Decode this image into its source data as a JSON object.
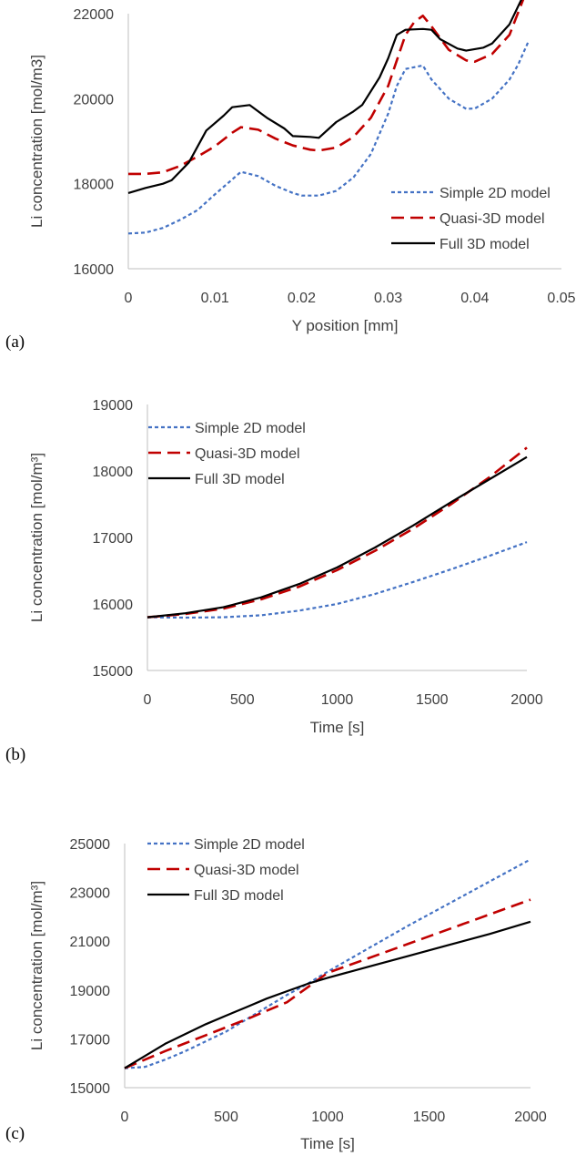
{
  "colors": {
    "simple_2d": "#4472C4",
    "quasi_3d": "#C00000",
    "full_3d": "#000000",
    "axis": "#BFBFBF",
    "text": "#404040"
  },
  "chart_data": [
    {
      "panel_label": "(a)",
      "type": "line",
      "xlabel": "Y position [mm]",
      "ylabel": "Li concentration [mol/m3]",
      "xlim": [
        0,
        0.05
      ],
      "ylim": [
        16000,
        22000
      ],
      "xticks": [
        "0",
        "0.01",
        "0.02",
        "0.03",
        "0.04",
        "0.05"
      ],
      "yticks": [
        "16000",
        "18000",
        "20000",
        "22000"
      ],
      "grid": false,
      "legend": "bottom-right",
      "series": [
        {
          "name": "Simple 2D model",
          "key": "simple_2d",
          "style": "dotted",
          "points": [
            [
              0,
              16830
            ],
            [
              0.002,
              16850
            ],
            [
              0.004,
              16960
            ],
            [
              0.006,
              17150
            ],
            [
              0.008,
              17380
            ],
            [
              0.01,
              17750
            ],
            [
              0.012,
              18100
            ],
            [
              0.013,
              18280
            ],
            [
              0.015,
              18180
            ],
            [
              0.017,
              17950
            ],
            [
              0.019,
              17780
            ],
            [
              0.02,
              17720
            ],
            [
              0.022,
              17720
            ],
            [
              0.024,
              17830
            ],
            [
              0.026,
              18150
            ],
            [
              0.028,
              18700
            ],
            [
              0.03,
              19650
            ],
            [
              0.031,
              20300
            ],
            [
              0.032,
              20700
            ],
            [
              0.034,
              20780
            ],
            [
              0.035,
              20450
            ],
            [
              0.037,
              20000
            ],
            [
              0.039,
              19760
            ],
            [
              0.04,
              19770
            ],
            [
              0.042,
              20000
            ],
            [
              0.044,
              20450
            ],
            [
              0.045,
              20800
            ],
            [
              0.0462,
              21350
            ]
          ]
        },
        {
          "name": "Quasi-3D model",
          "key": "quasi_3d",
          "style": "dashed",
          "points": [
            [
              0,
              18230
            ],
            [
              0.002,
              18230
            ],
            [
              0.004,
              18270
            ],
            [
              0.006,
              18420
            ],
            [
              0.008,
              18640
            ],
            [
              0.01,
              18880
            ],
            [
              0.012,
              19200
            ],
            [
              0.013,
              19330
            ],
            [
              0.015,
              19270
            ],
            [
              0.017,
              19060
            ],
            [
              0.019,
              18900
            ],
            [
              0.021,
              18800
            ],
            [
              0.022,
              18780
            ],
            [
              0.024,
              18850
            ],
            [
              0.026,
              19100
            ],
            [
              0.028,
              19550
            ],
            [
              0.03,
              20300
            ],
            [
              0.031,
              20900
            ],
            [
              0.032,
              21500
            ],
            [
              0.033,
              21800
            ],
            [
              0.034,
              21950
            ],
            [
              0.035,
              21700
            ],
            [
              0.037,
              21150
            ],
            [
              0.039,
              20900
            ],
            [
              0.04,
              20870
            ],
            [
              0.042,
              21050
            ],
            [
              0.044,
              21500
            ],
            [
              0.046,
              22550
            ]
          ]
        },
        {
          "name": "Full 3D model",
          "key": "full_3d",
          "style": "solid",
          "points": [
            [
              0,
              17780
            ],
            [
              0.002,
              17900
            ],
            [
              0.004,
              18000
            ],
            [
              0.005,
              18080
            ],
            [
              0.007,
              18500
            ],
            [
              0.009,
              19250
            ],
            [
              0.011,
              19600
            ],
            [
              0.012,
              19800
            ],
            [
              0.014,
              19850
            ],
            [
              0.016,
              19550
            ],
            [
              0.018,
              19300
            ],
            [
              0.019,
              19120
            ],
            [
              0.021,
              19100
            ],
            [
              0.022,
              19080
            ],
            [
              0.024,
              19450
            ],
            [
              0.026,
              19700
            ],
            [
              0.027,
              19850
            ],
            [
              0.029,
              20500
            ],
            [
              0.03,
              20950
            ],
            [
              0.031,
              21500
            ],
            [
              0.032,
              21620
            ],
            [
              0.034,
              21640
            ],
            [
              0.035,
              21620
            ],
            [
              0.036,
              21400
            ],
            [
              0.038,
              21180
            ],
            [
              0.039,
              21130
            ],
            [
              0.041,
              21200
            ],
            [
              0.042,
              21300
            ],
            [
              0.044,
              21750
            ],
            [
              0.0462,
              22680
            ]
          ]
        }
      ]
    },
    {
      "panel_label": "(b)",
      "type": "line",
      "xlabel": "Time [s]",
      "ylabel": "Li concentration [mol/m³]",
      "xlim": [
        0,
        2000
      ],
      "ylim": [
        15000,
        19000
      ],
      "xticks": [
        "0",
        "500",
        "1000",
        "1500",
        "2000"
      ],
      "yticks": [
        "15000",
        "16000",
        "17000",
        "18000",
        "19000"
      ],
      "grid": false,
      "legend": "top-left",
      "series": [
        {
          "name": "Simple 2D model",
          "key": "simple_2d",
          "style": "dotted",
          "points": [
            [
              0,
              15800
            ],
            [
              200,
              15795
            ],
            [
              400,
              15800
            ],
            [
              600,
              15830
            ],
            [
              800,
              15900
            ],
            [
              1000,
              16000
            ],
            [
              1200,
              16150
            ],
            [
              1400,
              16330
            ],
            [
              1600,
              16520
            ],
            [
              1800,
              16720
            ],
            [
              2000,
              16930
            ]
          ]
        },
        {
          "name": "Quasi-3D model",
          "key": "quasi_3d",
          "style": "dashed",
          "points": [
            [
              0,
              15800
            ],
            [
              200,
              15850
            ],
            [
              400,
              15930
            ],
            [
              600,
              16070
            ],
            [
              800,
              16260
            ],
            [
              1000,
              16510
            ],
            [
              1200,
              16800
            ],
            [
              1400,
              17130
            ],
            [
              1600,
              17500
            ],
            [
              1800,
              17900
            ],
            [
              2000,
              18350
            ]
          ]
        },
        {
          "name": "Full 3D model",
          "key": "full_3d",
          "style": "solid",
          "points": [
            [
              0,
              15800
            ],
            [
              200,
              15860
            ],
            [
              400,
              15950
            ],
            [
              600,
              16100
            ],
            [
              800,
              16300
            ],
            [
              1000,
              16550
            ],
            [
              1200,
              16850
            ],
            [
              1400,
              17180
            ],
            [
              1600,
              17530
            ],
            [
              1800,
              17870
            ],
            [
              2000,
              18210
            ]
          ]
        }
      ]
    },
    {
      "panel_label": "(c)",
      "type": "line",
      "xlabel": "Time [s]",
      "ylabel": "Li concentration [mol/m³]",
      "xlim": [
        0,
        2000
      ],
      "ylim": [
        15000,
        25000
      ],
      "xticks": [
        "0",
        "500",
        "1000",
        "1500",
        "2000"
      ],
      "yticks": [
        "15000",
        "17000",
        "19000",
        "21000",
        "23000",
        "25000"
      ],
      "grid": false,
      "legend": "top-left",
      "series": [
        {
          "name": "Simple 2D model",
          "key": "simple_2d",
          "style": "dotted",
          "points": [
            [
              0,
              15800
            ],
            [
              100,
              15850
            ],
            [
              200,
              16150
            ],
            [
              300,
              16500
            ],
            [
              400,
              16900
            ],
            [
              500,
              17300
            ],
            [
              600,
              17800
            ],
            [
              700,
              18300
            ],
            [
              800,
              18800
            ],
            [
              900,
              19250
            ],
            [
              1000,
              19750
            ],
            [
              1200,
              20700
            ],
            [
              1400,
              21650
            ],
            [
              1600,
              22550
            ],
            [
              1800,
              23450
            ],
            [
              2000,
              24350
            ]
          ]
        },
        {
          "name": "Quasi-3D model",
          "key": "quasi_3d",
          "style": "dashed",
          "points": [
            [
              0,
              15800
            ],
            [
              200,
              16500
            ],
            [
              400,
              17150
            ],
            [
              600,
              17800
            ],
            [
              800,
              18500
            ],
            [
              1000,
              19700
            ],
            [
              1200,
              20300
            ],
            [
              1400,
              20900
            ],
            [
              1600,
              21500
            ],
            [
              1800,
              22100
            ],
            [
              2000,
              22700
            ]
          ]
        },
        {
          "name": "Full 3D model",
          "key": "full_3d",
          "style": "solid",
          "points": [
            [
              0,
              15800
            ],
            [
              100,
              16300
            ],
            [
              200,
              16800
            ],
            [
              300,
              17200
            ],
            [
              400,
              17600
            ],
            [
              500,
              17950
            ],
            [
              600,
              18300
            ],
            [
              700,
              18650
            ],
            [
              800,
              18950
            ],
            [
              900,
              19250
            ],
            [
              1000,
              19500
            ],
            [
              1200,
              19950
            ],
            [
              1400,
              20400
            ],
            [
              1600,
              20850
            ],
            [
              1800,
              21300
            ],
            [
              2000,
              21800
            ]
          ]
        }
      ]
    }
  ]
}
